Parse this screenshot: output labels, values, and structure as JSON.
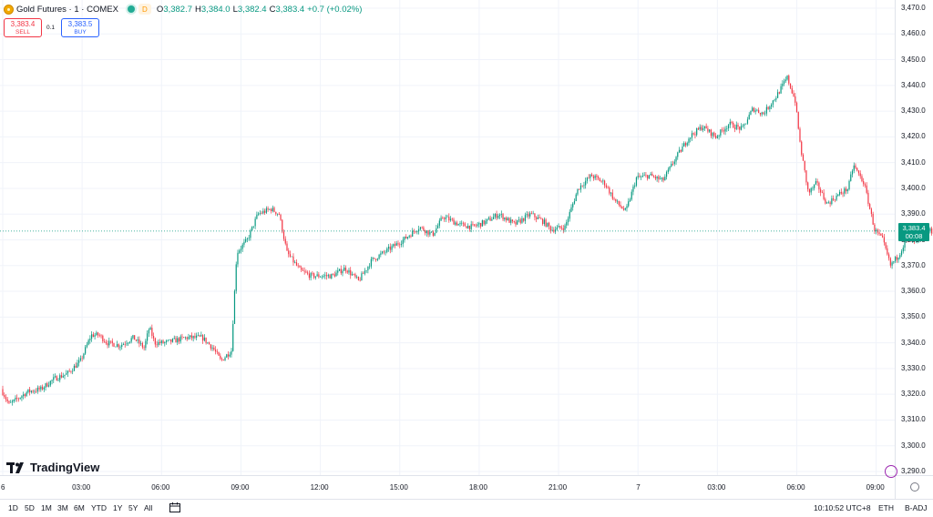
{
  "header": {
    "symbol": "Gold Futures · 1 · COMEX",
    "interval_badge": "D",
    "ohlc": [
      {
        "label": "O",
        "value": "3,382.7"
      },
      {
        "label": "H",
        "value": "3,384.0"
      },
      {
        "label": "L",
        "value": "3,382.4"
      },
      {
        "label": "C",
        "value": "3,383.4"
      }
    ],
    "change": "+0.7 (+0.02%)"
  },
  "trade": {
    "sell_price": "3,383.4",
    "sell_label": "SELL",
    "spread": "0.1",
    "buy_price": "3,383.5",
    "buy_label": "BUY"
  },
  "price_tag": {
    "price": "3,383.4",
    "countdown": "00:08"
  },
  "branding": {
    "logo_text": "TradingView"
  },
  "bottom_bar": {
    "ranges": [
      "1D",
      "5D",
      "1M",
      "3M",
      "6M",
      "YTD",
      "1Y",
      "5Y",
      "All"
    ],
    "clock": "10:10:52 UTC+8",
    "session": "ETH",
    "adjustment": "B-ADJ"
  },
  "colors": {
    "up": "#089981",
    "down": "#f23645",
    "grid": "#f0f3fa",
    "accent": "#2962ff"
  },
  "chart_data": {
    "type": "candlestick",
    "instrument": "Gold Futures · 1 · COMEX",
    "y_ticks": [
      "3,290.0",
      "3,300.0",
      "3,310.0",
      "3,320.0",
      "3,330.0",
      "3,340.0",
      "3,350.0",
      "3,360.0",
      "3,370.0",
      "3,380.0",
      "3,390.0",
      "3,400.0",
      "3,410.0",
      "3,420.0",
      "3,430.0",
      "3,440.0",
      "3,450.0",
      "3,460.0",
      "3,470.0"
    ],
    "ylim": [
      3286,
      3472
    ],
    "x_ticks": [
      "6",
      "03:00",
      "06:00",
      "09:00",
      "12:00",
      "15:00",
      "18:00",
      "21:00",
      "7",
      "03:00",
      "06:00",
      "09:00"
    ],
    "x_tick_hours": [
      0,
      3,
      6,
      9,
      12,
      15,
      18,
      21,
      24,
      27,
      30,
      33
    ],
    "xlim_hours": [
      0,
      35.2
    ],
    "last_price": 3383.4,
    "price_path": [
      [
        0.0,
        3322
      ],
      [
        0.3,
        3316
      ],
      [
        1.0,
        3321
      ],
      [
        1.5,
        3322
      ],
      [
        2.0,
        3326
      ],
      [
        2.5,
        3328
      ],
      [
        3.0,
        3333
      ],
      [
        3.4,
        3343
      ],
      [
        3.7,
        3343
      ],
      [
        4.0,
        3340
      ],
      [
        4.5,
        3339
      ],
      [
        5.0,
        3342
      ],
      [
        5.4,
        3338
      ],
      [
        5.6,
        3346
      ],
      [
        5.8,
        3340
      ],
      [
        6.2,
        3340
      ],
      [
        7.0,
        3342
      ],
      [
        7.6,
        3342
      ],
      [
        8.0,
        3338
      ],
      [
        8.3,
        3333
      ],
      [
        8.7,
        3337
      ],
      [
        8.9,
        3375
      ],
      [
        9.3,
        3380
      ],
      [
        9.7,
        3390
      ],
      [
        10.2,
        3392
      ],
      [
        10.5,
        3390
      ],
      [
        10.8,
        3375
      ],
      [
        11.3,
        3368
      ],
      [
        11.7,
        3366
      ],
      [
        12.5,
        3366
      ],
      [
        13.0,
        3369
      ],
      [
        13.5,
        3364
      ],
      [
        14.0,
        3372
      ],
      [
        14.6,
        3376
      ],
      [
        15.2,
        3380
      ],
      [
        15.8,
        3385
      ],
      [
        16.3,
        3382
      ],
      [
        16.7,
        3389
      ],
      [
        17.3,
        3386
      ],
      [
        17.8,
        3385
      ],
      [
        18.3,
        3387
      ],
      [
        18.8,
        3390
      ],
      [
        19.4,
        3386
      ],
      [
        20.0,
        3390
      ],
      [
        20.5,
        3387
      ],
      [
        20.8,
        3384
      ],
      [
        21.3,
        3385
      ],
      [
        21.8,
        3400
      ],
      [
        22.3,
        3405
      ],
      [
        22.8,
        3402
      ],
      [
        23.2,
        3395
      ],
      [
        23.6,
        3391
      ],
      [
        24.0,
        3404
      ],
      [
        24.5,
        3405
      ],
      [
        25.0,
        3403
      ],
      [
        25.5,
        3412
      ],
      [
        26.0,
        3420
      ],
      [
        26.5,
        3424
      ],
      [
        27.0,
        3420
      ],
      [
        27.5,
        3425
      ],
      [
        28.0,
        3423
      ],
      [
        28.4,
        3431
      ],
      [
        28.8,
        3429
      ],
      [
        29.3,
        3436
      ],
      [
        29.7,
        3443
      ],
      [
        30.0,
        3434
      ],
      [
        30.2,
        3416
      ],
      [
        30.5,
        3398
      ],
      [
        30.8,
        3402
      ],
      [
        31.2,
        3394
      ],
      [
        31.7,
        3398
      ],
      [
        32.0,
        3400
      ],
      [
        32.2,
        3409
      ],
      [
        32.6,
        3402
      ],
      [
        33.0,
        3384
      ],
      [
        33.3,
        3380
      ],
      [
        33.6,
        3370
      ],
      [
        33.9,
        3374
      ],
      [
        34.2,
        3380
      ],
      [
        34.6,
        3379
      ],
      [
        35.0,
        3383.4
      ]
    ]
  }
}
